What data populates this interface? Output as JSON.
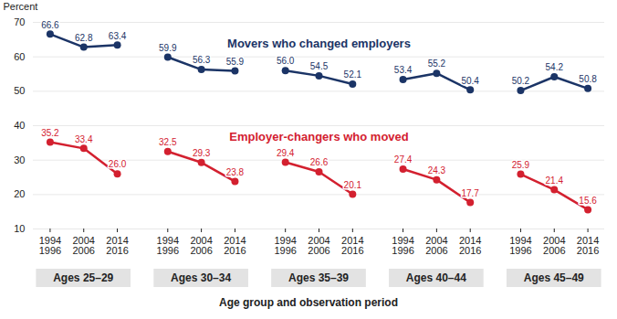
{
  "chart_data": {
    "type": "line",
    "y_label": "Percent",
    "x_label": "Age group and observation period",
    "groups": [
      "Ages 25–29",
      "Ages 30–34",
      "Ages 35–39",
      "Ages 40–44",
      "Ages 45–49"
    ],
    "categories": [
      "1994\n1996",
      "2004\n2006",
      "2014\n2016",
      "1994\n1996",
      "2004\n2006",
      "2014\n2016",
      "1994\n1996",
      "2004\n2006",
      "2014\n2016",
      "1994\n1996",
      "2004\n2006",
      "2014\n2016",
      "1994\n1996",
      "2004\n2006",
      "2014\n2016"
    ],
    "series": [
      {
        "name": "Movers who changed employers",
        "color": "#1b3466",
        "values": [
          66.6,
          62.8,
          63.4,
          59.9,
          56.3,
          55.9,
          56.0,
          54.5,
          52.1,
          53.4,
          55.2,
          50.4,
          50.2,
          54.2,
          50.8
        ],
        "value_labels": [
          "66.6",
          "62.8",
          "63.4",
          "59.9",
          "56.3",
          "55.9",
          "56.0",
          "54.5",
          "52.1",
          "53.4",
          "55.2",
          "50.4",
          "50.2",
          "54.2",
          "50.8"
        ]
      },
      {
        "name": "Employer-changers who moved",
        "color": "#d3202f",
        "values": [
          35.2,
          33.4,
          26.0,
          32.5,
          29.3,
          23.8,
          29.4,
          26.6,
          20.1,
          27.4,
          24.3,
          17.7,
          25.9,
          21.4,
          15.6
        ],
        "value_labels": [
          "35.2",
          "33.4",
          "26.0",
          "32.5",
          "29.3",
          "23.8",
          "29.4",
          "26.6",
          "20.1",
          "27.4",
          "24.3",
          "17.7",
          "25.9",
          "21.4",
          "15.6"
        ]
      }
    ],
    "ylim": [
      10,
      70
    ],
    "yticks": [
      10,
      20,
      30,
      40,
      50,
      60,
      70
    ],
    "grid": true,
    "data_labels": true,
    "marker": "circle"
  }
}
